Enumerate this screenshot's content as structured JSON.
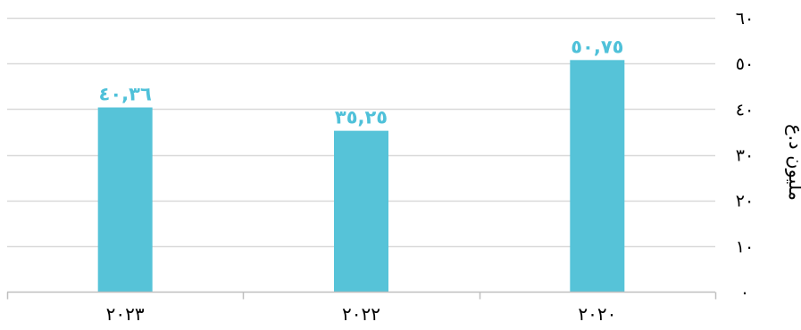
{
  "chart_data": {
    "type": "bar",
    "categories": [
      "٢٠٢٠",
      "٢٠٢٢",
      "٢٠٢٣"
    ],
    "values": [
      50.75,
      35.25,
      40.36
    ],
    "data_labels": [
      "٥٠,٧٥",
      "٣٥,٢٥",
      "٤٠,٣٦"
    ],
    "ylabel": "مليون د.ع",
    "ylim": [
      0,
      60
    ],
    "yticks": [
      0,
      10,
      20,
      30,
      40,
      50,
      60
    ],
    "ytick_labels": [
      "٠",
      "١٠",
      "٢٠",
      "٣٠",
      "٤٠",
      "٥٠",
      "٦٠"
    ],
    "category_order": "right-to-left",
    "y_axis_side": "right",
    "grid": true,
    "colors": {
      "bar": "#56c3d8",
      "data_label": "#4fc1d9",
      "grid": "#d9d9d9",
      "axis": "#bfbfbf"
    }
  }
}
